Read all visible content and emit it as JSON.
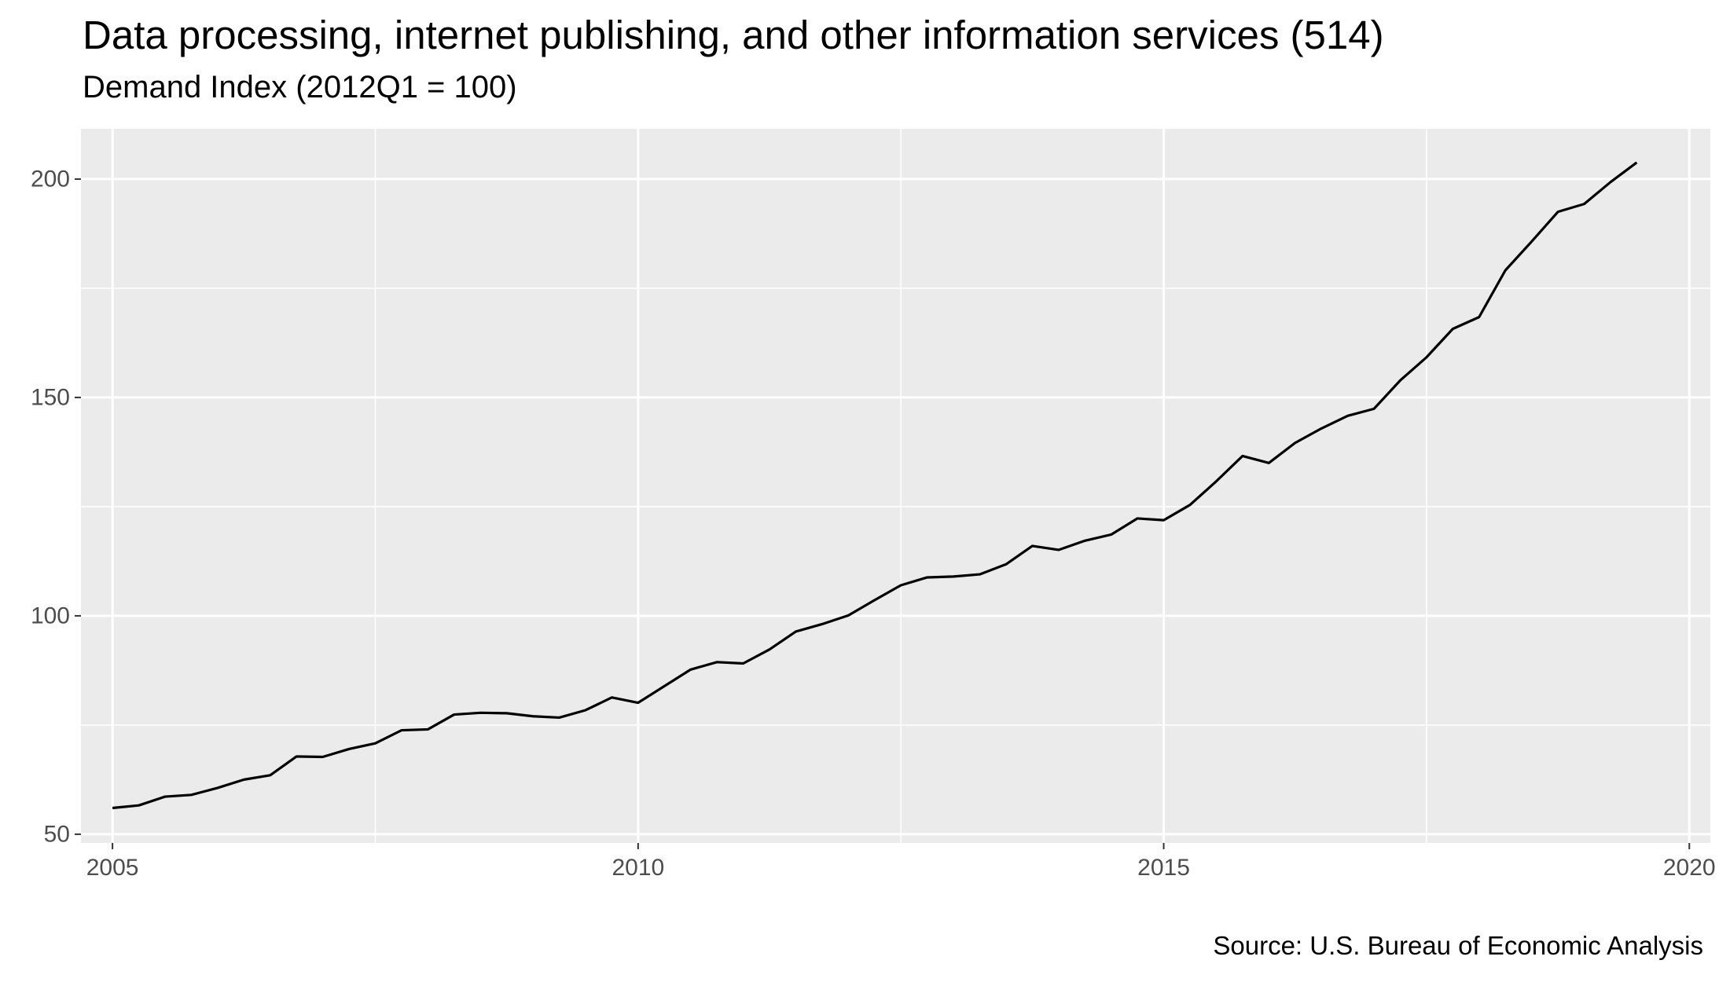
{
  "chart_data": {
    "type": "line",
    "title": "Data processing, internet publishing, and other information services (514)",
    "subtitle": "Demand Index (2012Q1 = 100)",
    "caption": "Source: U.S. Bureau of Economic Analysis",
    "xlabel": "",
    "ylabel": "",
    "xlim": [
      2004.7,
      2020.2
    ],
    "ylim": [
      48.0,
      211.5
    ],
    "x_ticks": [
      2005,
      2010,
      2015,
      2020
    ],
    "x_tick_labels": [
      "2005",
      "2010",
      "2015",
      "2020"
    ],
    "y_ticks": [
      50,
      100,
      150,
      200
    ],
    "y_tick_labels": [
      "50",
      "100",
      "150",
      "200"
    ],
    "grid": true,
    "legend": "none",
    "colors": {
      "panel_background": "#ebebeb",
      "grid_line": "#ffffff",
      "series_line": "#000000",
      "tick_text": "#4d4d4d"
    },
    "series": [
      {
        "x": [
          2005.0,
          2005.25,
          2005.5,
          2005.75,
          2006.0,
          2006.25,
          2006.5,
          2006.75,
          2007.0,
          2007.25,
          2007.5,
          2007.75,
          2008.0,
          2008.25,
          2008.5,
          2008.75,
          2009.0,
          2009.25,
          2009.5,
          2009.75,
          2010.0,
          2010.25,
          2010.5,
          2010.75,
          2011.0,
          2011.25,
          2011.5,
          2011.75,
          2012.0,
          2012.25,
          2012.5,
          2012.75,
          2013.0,
          2013.25,
          2013.5,
          2013.75,
          2014.0,
          2014.25,
          2014.5,
          2014.75,
          2015.0,
          2015.25,
          2015.5,
          2015.75,
          2016.0,
          2016.25,
          2016.5,
          2016.75,
          2017.0,
          2017.25,
          2017.5,
          2017.75,
          2018.0,
          2018.25,
          2018.5,
          2018.75,
          2019.0,
          2019.25,
          2019.5
        ],
        "values": [
          56.0,
          56.6,
          58.6,
          59.0,
          60.6,
          62.5,
          63.5,
          67.8,
          67.7,
          69.5,
          70.8,
          73.8,
          74.0,
          77.4,
          77.8,
          77.7,
          77.0,
          76.7,
          78.4,
          81.3,
          80.1,
          83.9,
          87.7,
          89.4,
          89.1,
          92.3,
          96.4,
          98.1,
          100.1,
          103.6,
          107.0,
          108.8,
          109.0,
          109.5,
          111.8,
          116.0,
          115.1,
          117.2,
          118.6,
          122.3,
          121.9,
          125.4,
          130.8,
          136.6,
          135.0,
          139.6,
          142.9,
          145.8,
          147.4,
          153.9,
          159.2,
          165.7,
          168.4,
          179.1,
          185.7,
          192.5,
          194.3,
          199.3,
          203.8
        ]
      }
    ]
  }
}
